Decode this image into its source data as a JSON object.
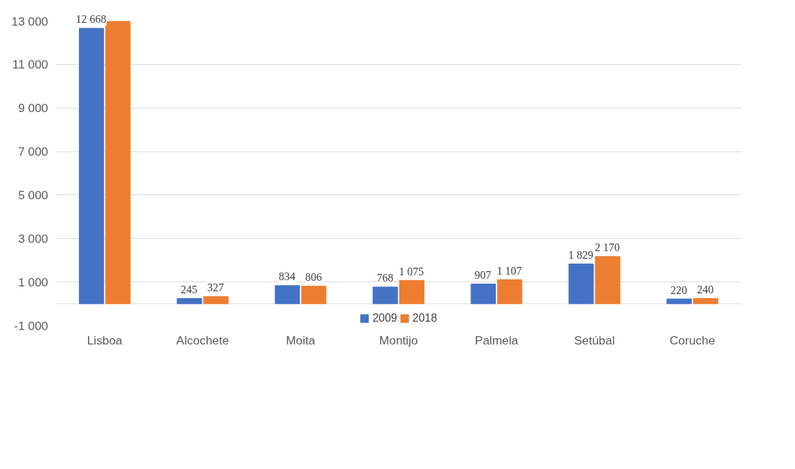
{
  "chart_data": {
    "type": "bar",
    "categories": [
      "Lisboa",
      "Alcochete",
      "Moita",
      "Montijo",
      "Palmela",
      "Setúbal",
      "Coruche"
    ],
    "series": [
      {
        "name": "2009",
        "color": "#4472c4",
        "values": [
          12668,
          245,
          834,
          768,
          907,
          1829,
          220
        ],
        "value_labels": [
          "12 668",
          "245",
          "834",
          "768",
          "907",
          "1 829",
          "220"
        ]
      },
      {
        "name": "2018",
        "color": "#ed7d31",
        "values": [
          13000,
          327,
          806,
          1075,
          1107,
          2170,
          240
        ],
        "value_labels": [
          null,
          "327",
          "806",
          "1 075",
          "1 107",
          "2 170",
          "240"
        ]
      }
    ],
    "ylim": [
      -1000,
      13000
    ],
    "yticks": [
      {
        "value": -1000,
        "label": "-1 000"
      },
      {
        "value": 1000,
        "label": "1 000"
      },
      {
        "value": 3000,
        "label": "3 000"
      },
      {
        "value": 5000,
        "label": "5 000"
      },
      {
        "value": 7000,
        "label": "7 000"
      },
      {
        "value": 9000,
        "label": "9 000"
      },
      {
        "value": 11000,
        "label": "11 000"
      },
      {
        "value": 13000,
        "label": "13 000"
      }
    ],
    "grid": "y",
    "legend": "bottom"
  }
}
